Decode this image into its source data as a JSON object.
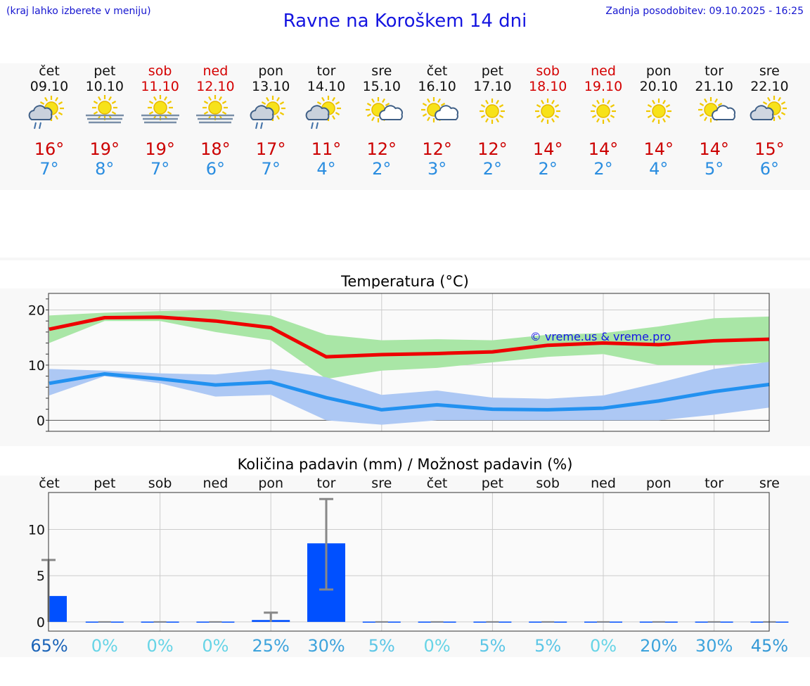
{
  "header": {
    "left_note": "(kraj lahko izberete v meniju)",
    "title": "Ravne na Koroškem 14 dni",
    "updated": "Zadnja posodobitev: 09.10.2025 - 16:25"
  },
  "days": [
    {
      "name": "čet",
      "date": "09.10",
      "weekend": false,
      "icon": "sun-cloud-rain-icon",
      "tmax": "16°",
      "tmin": "7°"
    },
    {
      "name": "pet",
      "date": "10.10",
      "weekend": false,
      "icon": "sun-fog-icon",
      "tmax": "19°",
      "tmin": "8°"
    },
    {
      "name": "sob",
      "date": "11.10",
      "weekend": true,
      "icon": "sun-fog-icon",
      "tmax": "19°",
      "tmin": "7°"
    },
    {
      "name": "ned",
      "date": "12.10",
      "weekend": true,
      "icon": "sun-fog-icon",
      "tmax": "18°",
      "tmin": "6°"
    },
    {
      "name": "pon",
      "date": "13.10",
      "weekend": false,
      "icon": "sun-cloud-rain-icon",
      "tmax": "17°",
      "tmin": "7°"
    },
    {
      "name": "tor",
      "date": "14.10",
      "weekend": false,
      "icon": "sun-cloud-rain-icon",
      "tmax": "11°",
      "tmin": "4°"
    },
    {
      "name": "sre",
      "date": "15.10",
      "weekend": false,
      "icon": "sun-small-cloud-icon",
      "tmax": "12°",
      "tmin": "2°"
    },
    {
      "name": "čet",
      "date": "16.10",
      "weekend": false,
      "icon": "sun-small-cloud-icon",
      "tmax": "12°",
      "tmin": "3°"
    },
    {
      "name": "pet",
      "date": "17.10",
      "weekend": false,
      "icon": "sun-icon",
      "tmax": "12°",
      "tmin": "2°"
    },
    {
      "name": "sob",
      "date": "18.10",
      "weekend": true,
      "icon": "sun-icon",
      "tmax": "14°",
      "tmin": "2°"
    },
    {
      "name": "ned",
      "date": "19.10",
      "weekend": true,
      "icon": "sun-icon",
      "tmax": "14°",
      "tmin": "2°"
    },
    {
      "name": "pon",
      "date": "20.10",
      "weekend": false,
      "icon": "sun-icon",
      "tmax": "14°",
      "tmin": "4°"
    },
    {
      "name": "tor",
      "date": "21.10",
      "weekend": false,
      "icon": "sun-small-cloud-icon",
      "tmax": "14°",
      "tmin": "5°"
    },
    {
      "name": "sre",
      "date": "22.10",
      "weekend": false,
      "icon": "sun-cloud-icon",
      "tmax": "15°",
      "tmin": "6°"
    }
  ],
  "colors": {
    "max_line": "#ee0000",
    "max_band": "#a9e6a6",
    "min_line": "#2291f0",
    "min_band": "#adc8f4",
    "bar": "#0050ff",
    "errorbar": "#888888",
    "grid": "#cccccc"
  },
  "chart_data": [
    {
      "type": "line",
      "title": "Temperatura (°C)",
      "watermark": "© vreme.us & vreme.pro",
      "x": [
        0,
        1,
        2,
        3,
        4,
        5,
        6,
        7,
        8,
        9,
        10,
        11,
        12,
        13
      ],
      "ylim": [
        -2,
        23
      ],
      "yticks": [
        0,
        10,
        20
      ],
      "grid": true,
      "series": [
        {
          "values": [
            16.5,
            18.6,
            18.7,
            18,
            16.8,
            11.5,
            11.9,
            12.1,
            12.4,
            13.6,
            14,
            13.7,
            14.4,
            14.7
          ],
          "band_low": [
            14,
            18,
            18,
            16,
            14.5,
            7.5,
            9,
            9.5,
            10.5,
            11.5,
            12,
            10,
            10,
            10.5
          ],
          "band_high": [
            19,
            19.5,
            19.8,
            20,
            19,
            15.5,
            14.5,
            14.7,
            14.5,
            15.5,
            15.8,
            17,
            18.5,
            18.8
          ]
        },
        {
          "values": [
            6.7,
            8.4,
            7.5,
            6.4,
            6.9,
            4.1,
            1.9,
            2.8,
            2,
            1.9,
            2.2,
            3.5,
            5.2,
            6.5
          ],
          "band_low": [
            4.5,
            8,
            6.7,
            4.3,
            4.6,
            0,
            -0.8,
            0,
            0,
            0,
            0,
            0,
            1,
            2.3
          ],
          "band_high": [
            9.3,
            9,
            8.5,
            8.3,
            9.3,
            7.8,
            4.6,
            5.4,
            4.1,
            3.9,
            4.5,
            6.8,
            9.3,
            10.6
          ]
        }
      ]
    },
    {
      "type": "bar",
      "title": "Količina padavin (mm) / Možnost padavin (%)",
      "categories": [
        "čet",
        "pet",
        "sob",
        "ned",
        "pon",
        "tor",
        "sre",
        "čet",
        "pet",
        "sob",
        "ned",
        "pon",
        "tor",
        "sre"
      ],
      "values": [
        2.8,
        0,
        0,
        0,
        0.2,
        8.5,
        0,
        0,
        0,
        0,
        0,
        0,
        0,
        0
      ],
      "err_low": [
        0,
        0,
        0,
        0,
        0,
        3.5,
        0,
        0,
        0,
        0,
        0,
        0,
        0,
        0
      ],
      "err_high": [
        6.7,
        0,
        0,
        0,
        1,
        13.3,
        0,
        0,
        0,
        0,
        0,
        0,
        0,
        0
      ],
      "probability": [
        "65%",
        "0%",
        "0%",
        "0%",
        "25%",
        "30%",
        "5%",
        "0%",
        "5%",
        "5%",
        "0%",
        "20%",
        "30%",
        "45%"
      ],
      "probability_colors": [
        "#1a63b8",
        "#66d4e6",
        "#66d4e6",
        "#66d4e6",
        "#3da3dc",
        "#3da3dc",
        "#5cc6e6",
        "#66d4e6",
        "#5cc6e6",
        "#5cc6e6",
        "#66d4e6",
        "#3da3dc",
        "#3da3dc",
        "#3499d6"
      ],
      "ylim": [
        -1,
        14
      ],
      "yticks": [
        0,
        5,
        10
      ],
      "grid": true
    }
  ]
}
